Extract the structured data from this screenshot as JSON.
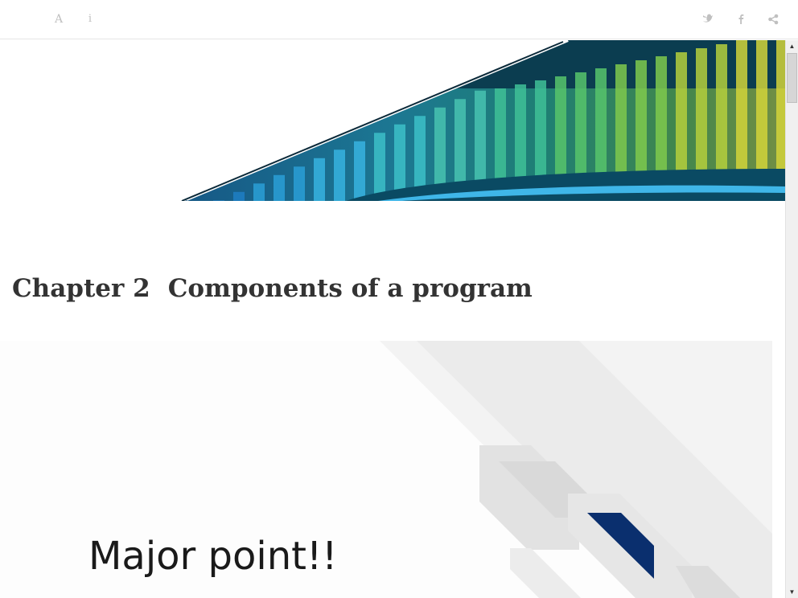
{
  "toolbar": {
    "font_button": "A",
    "info_button": "i",
    "share_icons": [
      "twitter-icon",
      "facebook-icon",
      "share-icon"
    ],
    "icon_color": "#c0c0c0"
  },
  "chapter": {
    "number": "Chapter 2",
    "title": "Components of a program"
  },
  "slide": {
    "text": "Major point!!",
    "accent_color": "#0a2f6e"
  },
  "scrollbar": {
    "up_arrow": "▲",
    "down_arrow": "▼"
  }
}
